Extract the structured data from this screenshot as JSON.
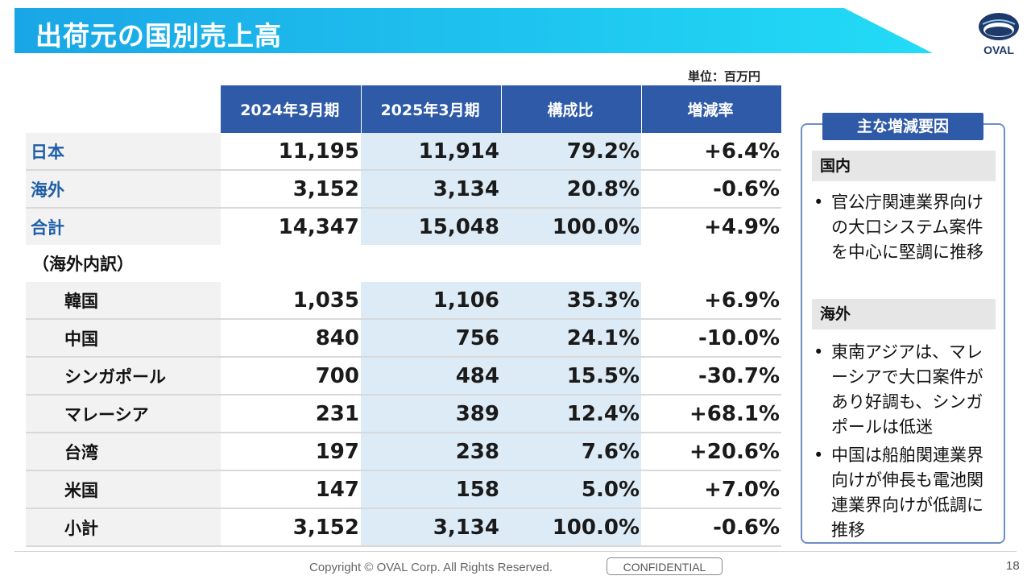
{
  "title": "出荷元の国別売上高",
  "logo": {
    "text": "OVAL",
    "colors": {
      "navy": "#1d3a6b",
      "light": "#8ec3ea"
    }
  },
  "unit": "単位：百万円",
  "table": {
    "headers": [
      "2024年3月期",
      "2025年3月期",
      "構成比",
      "増減率"
    ],
    "rows": [
      {
        "label": "日本",
        "v2024": "11,195",
        "v2025": "11,914",
        "ratio": "79.2%",
        "change": "+6.4%"
      },
      {
        "label": "海外",
        "v2024": "3,152",
        "v2025": "3,134",
        "ratio": "20.8%",
        "change": "-0.6%"
      },
      {
        "label": "合計",
        "v2024": "14,347",
        "v2025": "15,048",
        "ratio": "100.0%",
        "change": "+4.9%"
      }
    ],
    "breakdown_label": "（海外内訳）",
    "sub_rows": [
      {
        "label": "韓国",
        "v2024": "1,035",
        "v2025": "1,106",
        "ratio": "35.3%",
        "change": "+6.9%"
      },
      {
        "label": "中国",
        "v2024": "840",
        "v2025": "756",
        "ratio": "24.1%",
        "change": "-10.0%"
      },
      {
        "label": "シンガポール",
        "v2024": "700",
        "v2025": "484",
        "ratio": "15.5%",
        "change": "-30.7%"
      },
      {
        "label": "マレーシア",
        "v2024": "231",
        "v2025": "389",
        "ratio": "12.4%",
        "change": "+68.1%"
      },
      {
        "label": "台湾",
        "v2024": "197",
        "v2025": "238",
        "ratio": "7.6%",
        "change": "+20.6%"
      },
      {
        "label": "米国",
        "v2024": "147",
        "v2025": "158",
        "ratio": "5.0%",
        "change": "+7.0%"
      },
      {
        "label": "小計",
        "v2024": "3,152",
        "v2025": "3,134",
        "ratio": "100.0%",
        "change": "-0.6%"
      }
    ]
  },
  "sidebar": {
    "title": "主な増減要因",
    "domestic_heading": "国内",
    "domestic_bullets": [
      "官公庁関連業界向けの大口システム案件を中心に堅調に推移"
    ],
    "overseas_heading": "海外",
    "overseas_bullets": [
      "東南アジアは、マレーシアで大口案件があり好調も、シンガポールは低迷",
      "中国は船舶関連業界向けが伸長も電池関連業界向けが低調に推移"
    ]
  },
  "footer": {
    "copyright": "Copyright © OVAL Corp. All Rights Reserved.",
    "confidential": "CONFIDENTIAL",
    "page_number": "18"
  },
  "colors": {
    "header_blue": "#2e5aa8",
    "title_cyan": "#1fc4f0",
    "label_blue": "#1f5fa8",
    "highlight": "#dcebf6"
  }
}
